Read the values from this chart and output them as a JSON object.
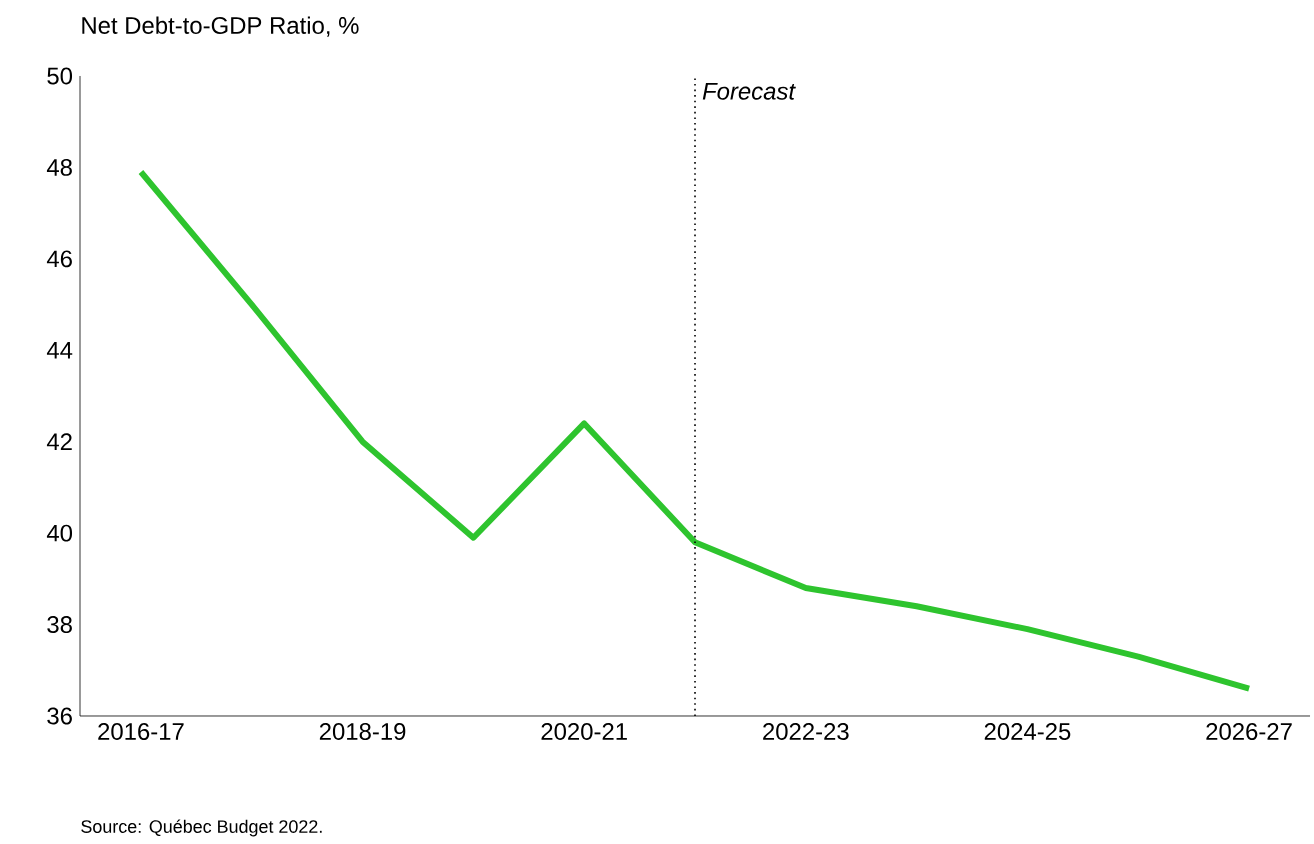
{
  "chart_data": {
    "type": "line",
    "title": "Net Debt-to-GDP Ratio, %",
    "categories": [
      "2016-17",
      null,
      "2018-19",
      null,
      "2020-21",
      null,
      "2022-23",
      null,
      "2024-25",
      null,
      "2026-27"
    ],
    "series": [
      {
        "color": "#2ec42e",
        "values": [
          47.9,
          45.0,
          42.0,
          39.9,
          42.4,
          39.8,
          38.8,
          38.4,
          37.9,
          37.3,
          36.6
        ]
      }
    ],
    "ylim": [
      36,
      50
    ],
    "yticks": [
      36,
      38,
      40,
      42,
      44,
      46,
      48,
      50
    ],
    "annotations": [
      "Forecast",
      "Source: Québec Budget 2022."
    ],
    "marker": "none",
    "line_style": "solid"
  }
}
